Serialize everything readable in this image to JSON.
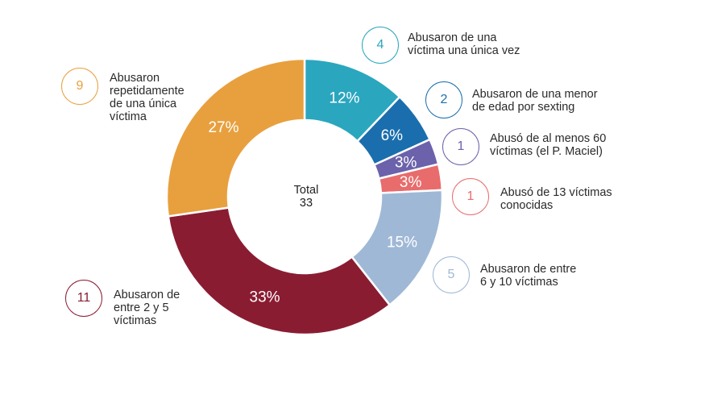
{
  "chart_data": {
    "type": "pie",
    "donut": true,
    "title": "",
    "center": {
      "title": "Total",
      "value": "33"
    },
    "slices": [
      {
        "key": "una-vez",
        "count": "4",
        "value": 12,
        "label_text": "12%",
        "color": "#2ba6bf",
        "label": [
          "Abusaron de una",
          "víctima una única vez"
        ]
      },
      {
        "key": "sexting",
        "count": "2",
        "value": 6,
        "label_text": "6%",
        "color": "#1a6ead",
        "label": [
          "Abusaron de una menor",
          "de edad por sexting"
        ]
      },
      {
        "key": "maciel",
        "count": "1",
        "value": 3,
        "label_text": "3%",
        "color": "#6b62ab",
        "label": [
          "Abusó de al menos 60",
          "víctimas (el P. Maciel)"
        ]
      },
      {
        "key": "trece",
        "count": "1",
        "value": 3,
        "label_text": "3%",
        "color": "#e86c6c",
        "label": [
          "Abusó de 13 víctimas",
          "conocidas"
        ]
      },
      {
        "key": "seis-diez",
        "count": "5",
        "value": 15,
        "label_text": "15%",
        "color": "#9fb8d6",
        "label": [
          "Abusaron de entre",
          "6 y 10 víctimas"
        ]
      },
      {
        "key": "dos-cinco",
        "count": "11",
        "value": 33,
        "label_text": "33%",
        "color": "#8a1c32",
        "label": [
          "Abusaron de",
          "entre 2 y 5",
          "víctimas"
        ]
      },
      {
        "key": "repetida",
        "count": "9",
        "value": 27,
        "label_text": "27%",
        "color": "#e8a03e",
        "label": [
          "Abusaron",
          "repetidamente",
          "de una única",
          "víctima"
        ]
      }
    ]
  }
}
